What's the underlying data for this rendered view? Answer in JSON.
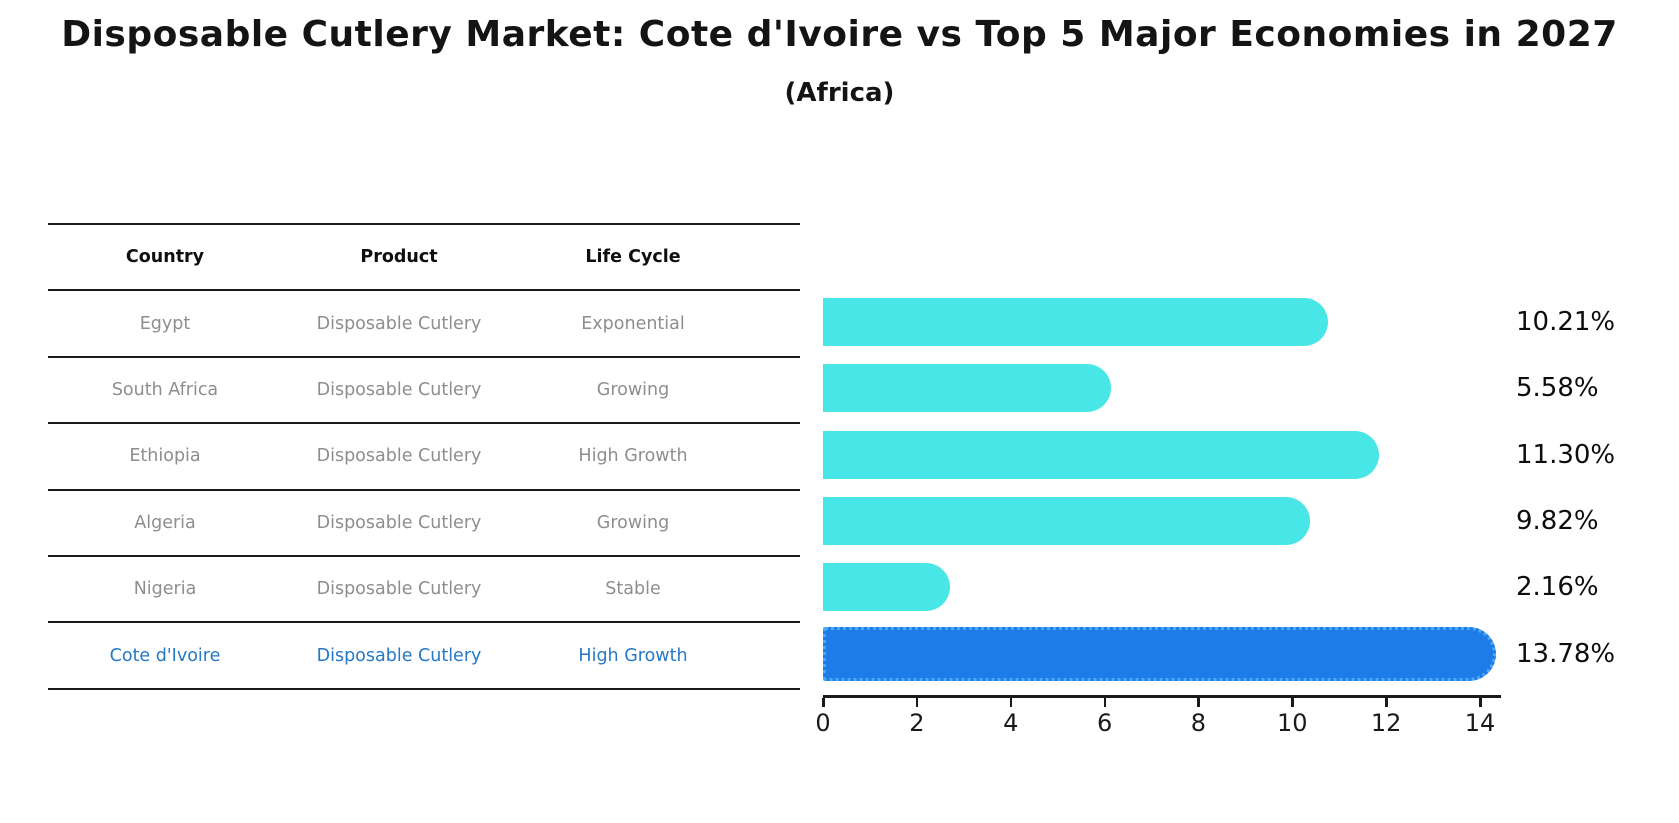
{
  "title": "Disposable Cutlery Market: Cote d'Ivoire vs Top 5 Major Economies in 2027",
  "subtitle": "(Africa)",
  "table": {
    "headers": {
      "country": "Country",
      "product": "Product",
      "life_cycle": "Life Cycle"
    },
    "rows": [
      {
        "country": "Egypt",
        "product": "Disposable Cutlery",
        "life_cycle": "Exponential",
        "highlight": false
      },
      {
        "country": "South Africa",
        "product": "Disposable Cutlery",
        "life_cycle": "Growing",
        "highlight": false
      },
      {
        "country": "Ethiopia",
        "product": "Disposable Cutlery",
        "life_cycle": "High Growth",
        "highlight": false
      },
      {
        "country": "Algeria",
        "product": "Disposable Cutlery",
        "life_cycle": "Growing",
        "highlight": false
      },
      {
        "country": "Nigeria",
        "product": "Disposable Cutlery",
        "life_cycle": "Stable",
        "highlight": false
      },
      {
        "country": "Cote d'Ivoire",
        "product": "Disposable Cutlery",
        "life_cycle": "High Growth",
        "highlight": true
      }
    ]
  },
  "chart_data": {
    "type": "bar",
    "orientation": "horizontal",
    "title": "Disposable Cutlery Market: Cote d'Ivoire vs Top 5 Major Economies in 2027 (Africa)",
    "categories": [
      "Egypt",
      "South Africa",
      "Ethiopia",
      "Algeria",
      "Nigeria",
      "Cote d'Ivoire"
    ],
    "values": [
      10.21,
      5.58,
      11.3,
      9.82,
      2.16,
      13.78
    ],
    "value_labels": [
      "10.21%",
      "5.58%",
      "11.30%",
      "9.82%",
      "2.16%",
      "13.78%"
    ],
    "xticks": [
      "0",
      "2",
      "4",
      "6",
      "8",
      "10",
      "12",
      "14"
    ],
    "xlim": [
      0,
      14.43
    ],
    "grid": false,
    "legend": false,
    "bar_color": "#48E6E6",
    "highlight_color": "#1E7CE8",
    "highlight_border_color": "#4FA8F2",
    "highlight_index": 5,
    "text_color": "#0d0d0d",
    "muted_text_color": "#8e8e8e",
    "highlight_text_color": "#2579c5"
  }
}
